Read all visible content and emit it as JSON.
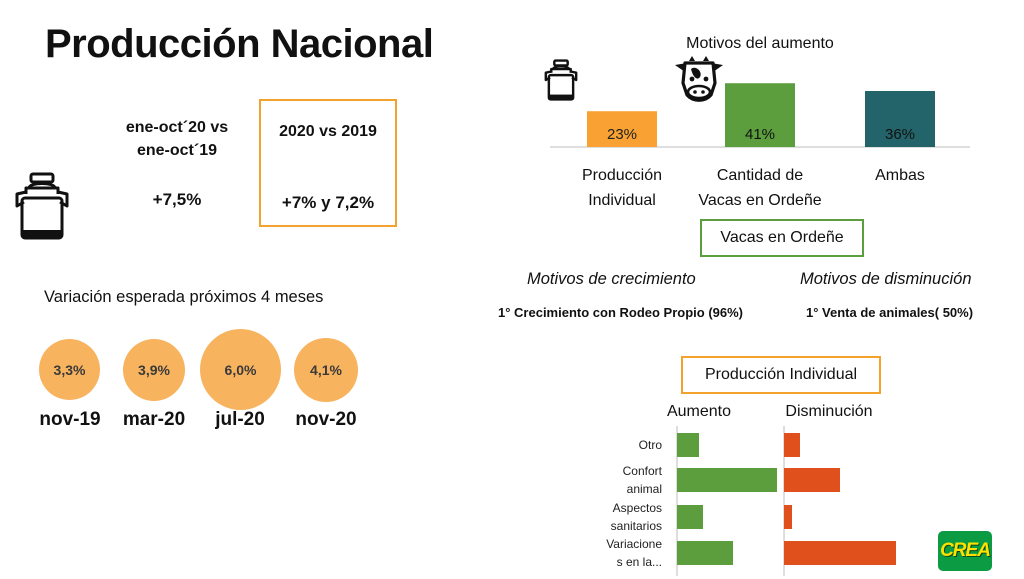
{
  "page_title": "Producción Nacional",
  "comparison": {
    "period_label": "ene-oct´20 vs ene-oct´19",
    "period_value": "+7,5%",
    "year_label": "2020 vs 2019",
    "year_value": "+7% y 7,2%"
  },
  "icons": {
    "milk_can_large": "milk-can-icon",
    "milk_can_small": "milk-can-icon",
    "cow": "cow-icon"
  },
  "expected_variation": {
    "title": "Variación esperada próximos 4 meses",
    "items": [
      {
        "label": "nov-19",
        "value_text": "3,3%",
        "value": 3.3
      },
      {
        "label": "mar-20",
        "value_text": "3,9%",
        "value": 3.9
      },
      {
        "label": "jul-20",
        "value_text": "6,0%",
        "value": 6.0
      },
      {
        "label": "nov-20",
        "value_text": "4,1%",
        "value": 4.1
      }
    ],
    "bubble_color": "#f8b35f"
  },
  "cows_box_label": "Vacas en Ordeñe",
  "growth_header": "Motivos de crecimiento",
  "decline_header": "Motivos de disminución",
  "growth_reason": "1° Crecimiento con Rodeo Propio (96%)",
  "decline_reason": "1° Venta de animales( 50%)",
  "individual_box_label": "Producción Individual",
  "logo_text": "CREA",
  "chart_data": [
    {
      "type": "bar",
      "title": "Motivos del aumento",
      "categories": [
        "Producción Individual",
        "Cantidad de Vacas en Ordeñe",
        "Ambas"
      ],
      "category_lines": [
        [
          "Producción",
          "Individual"
        ],
        [
          "Cantidad de",
          "Vacas en Ordeñe"
        ],
        [
          "Ambas"
        ]
      ],
      "values": [
        23,
        41,
        36
      ],
      "value_labels": [
        "23%",
        "41%",
        "36%"
      ],
      "colors": [
        "#f9a132",
        "#5c9e3d",
        "#23636a"
      ],
      "label_colors": [
        "#222222",
        "#111111",
        "#111111"
      ],
      "ylim": [
        0,
        45
      ]
    },
    {
      "type": "bar",
      "orientation": "horizontal",
      "categories": [
        "Otro",
        "Confort animal",
        "Aspectos sanitarios",
        "Variaciones en la..."
      ],
      "category_lines": [
        [
          "Otro"
        ],
        [
          "Confort",
          "animal"
        ],
        [
          "Aspectos",
          "sanitarios"
        ],
        [
          "Variacione",
          "s en la..."
        ]
      ],
      "series": [
        {
          "name": "Aumento",
          "values": [
            11,
            50,
            13,
            28
          ],
          "color": "#5c9e3d"
        },
        {
          "name": "Disminución",
          "values": [
            8,
            28,
            4,
            56
          ],
          "color": "#e0501c"
        }
      ],
      "xlim": [
        0,
        60
      ]
    }
  ]
}
